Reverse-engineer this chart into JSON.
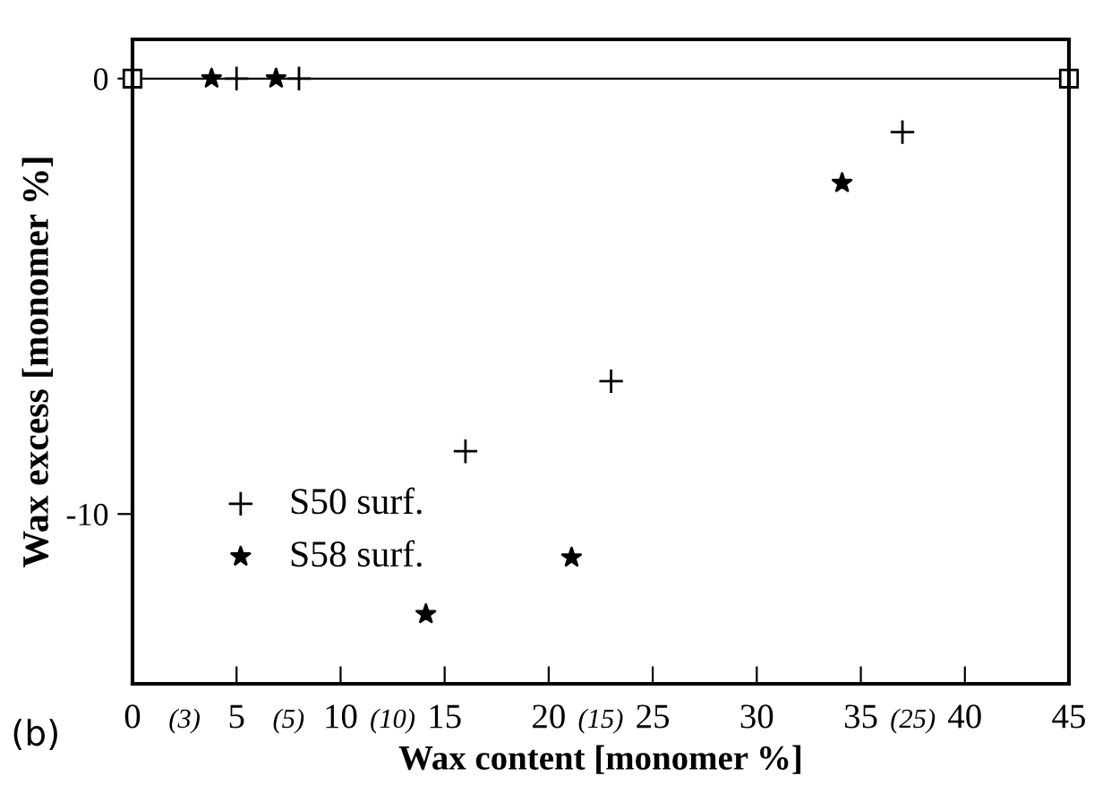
{
  "chart_data": {
    "type": "scatter",
    "xlabel": "Wax content [monomer %]",
    "ylabel": "Wax excess [monomer %]",
    "xlim": [
      0,
      45
    ],
    "ylim": [
      -13.9,
      0.9
    ],
    "xticks": [
      0,
      5,
      10,
      15,
      20,
      25,
      30,
      35,
      40,
      45
    ],
    "yticks": [
      0,
      -10
    ],
    "series": [
      {
        "name": "S50 surf.",
        "color": "#000000",
        "marker": "cross",
        "x": [
          5,
          8,
          16,
          23,
          37
        ],
        "values": [
          0,
          0,
          -8.56,
          -6.95,
          -1.23
        ]
      },
      {
        "type": "line",
        "color": "#000000",
        "marker": "square",
        "x": [
          0,
          45
        ],
        "values": [
          0,
          0
        ]
      },
      {
        "name": "S58 surf.",
        "color": "#000000",
        "marker": "star",
        "x": [
          3.8,
          6.9,
          14.1,
          21.1,
          34.1
        ],
        "values": [
          0,
          0,
          -12.3,
          -11.0,
          -2.4
        ]
      }
    ],
    "legend": "bottom left",
    "grid": false,
    "annotations": [
      "(b)",
      "(3)",
      "(5)",
      "(10)",
      "(15)",
      "(25)"
    ]
  }
}
